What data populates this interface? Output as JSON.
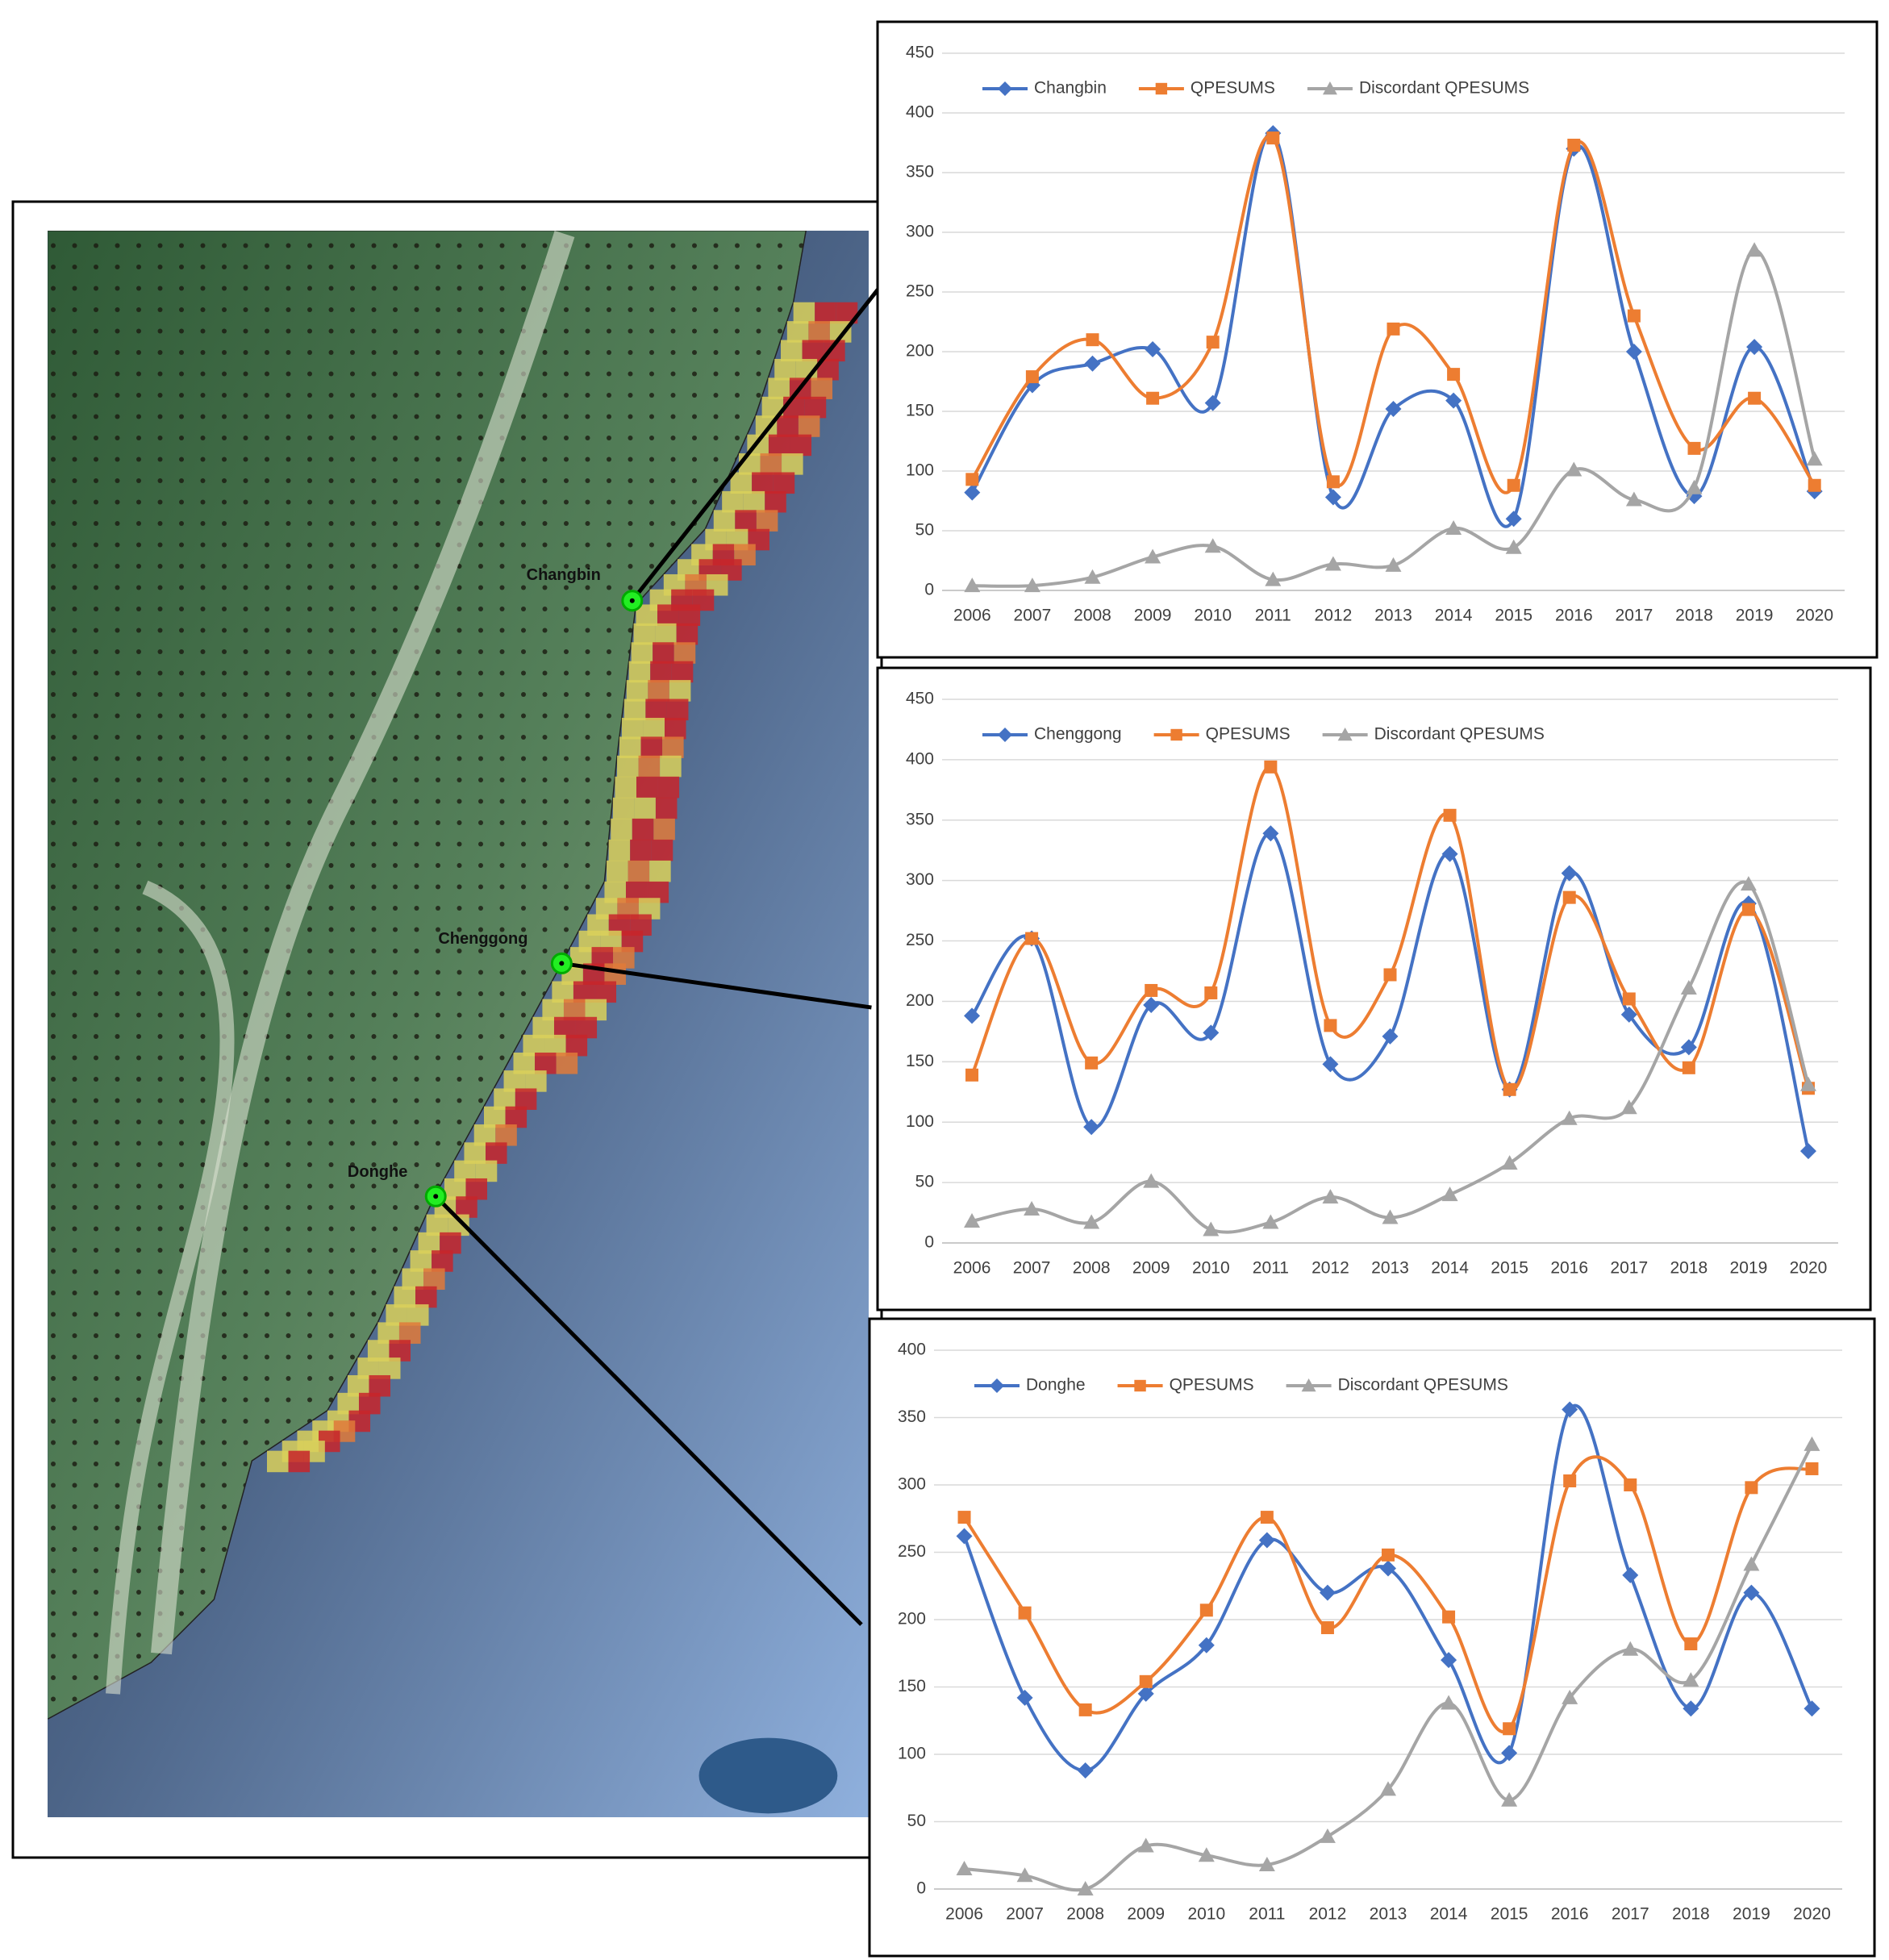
{
  "map": {
    "sites": [
      "Changbin",
      "Chenggong",
      "Donghe"
    ]
  },
  "chart_data": [
    {
      "type": "line",
      "categories": [
        "2006",
        "2007",
        "2008",
        "2009",
        "2010",
        "2011",
        "2012",
        "2013",
        "2014",
        "2015",
        "2016",
        "2017",
        "2018",
        "2019",
        "2020"
      ],
      "ylim": [
        0,
        450
      ],
      "yticks": [
        0,
        50,
        100,
        150,
        200,
        250,
        300,
        350,
        400,
        450
      ],
      "grid": true,
      "legend": "top",
      "series": [
        {
          "name": "Changbin",
          "color": "#4472c4",
          "marker": "diamond",
          "values": [
            82,
            172,
            190,
            202,
            157,
            383,
            78,
            152,
            159,
            60,
            370,
            200,
            79,
            204,
            83
          ]
        },
        {
          "name": "QPESUMS",
          "color": "#ed7d31",
          "marker": "square",
          "values": [
            93,
            179,
            210,
            161,
            208,
            379,
            91,
            219,
            181,
            88,
            373,
            230,
            119,
            161,
            88
          ]
        },
        {
          "name": "Discordant QPESUMS",
          "color": "#a5a5a5",
          "marker": "triangle",
          "values": [
            4,
            4,
            11,
            28,
            37,
            9,
            22,
            21,
            52,
            36,
            101,
            76,
            86,
            285,
            110
          ]
        }
      ]
    },
    {
      "type": "line",
      "categories": [
        "2006",
        "2007",
        "2008",
        "2009",
        "2010",
        "2011",
        "2012",
        "2013",
        "2014",
        "2015",
        "2016",
        "2017",
        "2018",
        "2019",
        "2020"
      ],
      "ylim": [
        0,
        450
      ],
      "yticks": [
        0,
        50,
        100,
        150,
        200,
        250,
        300,
        350,
        400,
        450
      ],
      "grid": true,
      "legend": "top",
      "series": [
        {
          "name": "Chenggong",
          "color": "#4472c4",
          "marker": "diamond",
          "values": [
            188,
            252,
            96,
            197,
            174,
            339,
            148,
            171,
            322,
            127,
            306,
            189,
            162,
            281,
            76
          ]
        },
        {
          "name": "QPESUMS",
          "color": "#ed7d31",
          "marker": "square",
          "values": [
            139,
            252,
            149,
            209,
            207,
            394,
            180,
            222,
            354,
            127,
            286,
            202,
            145,
            276,
            128
          ]
        },
        {
          "name": "Discordant QPESUMS",
          "color": "#a5a5a5",
          "marker": "triangle",
          "values": [
            18,
            28,
            17,
            51,
            11,
            17,
            38,
            21,
            40,
            66,
            103,
            112,
            211,
            297,
            131
          ]
        }
      ]
    },
    {
      "type": "line",
      "categories": [
        "2006",
        "2007",
        "2008",
        "2009",
        "2010",
        "2011",
        "2012",
        "2013",
        "2014",
        "2015",
        "2016",
        "2017",
        "2018",
        "2019",
        "2020"
      ],
      "ylim": [
        0,
        400
      ],
      "yticks": [
        0,
        50,
        100,
        150,
        200,
        250,
        300,
        350,
        400
      ],
      "grid": true,
      "legend": "top",
      "series": [
        {
          "name": "Donghe",
          "color": "#4472c4",
          "marker": "diamond",
          "values": [
            262,
            142,
            88,
            145,
            181,
            259,
            220,
            238,
            170,
            101,
            356,
            233,
            134,
            220,
            134
          ]
        },
        {
          "name": "QPESUMS",
          "color": "#ed7d31",
          "marker": "square",
          "values": [
            276,
            205,
            133,
            154,
            207,
            276,
            194,
            248,
            202,
            119,
            303,
            300,
            182,
            298,
            312
          ]
        },
        {
          "name": "Discordant QPESUMS",
          "color": "#a5a5a5",
          "marker": "triangle",
          "values": [
            15,
            10,
            0,
            32,
            25,
            18,
            39,
            74,
            138,
            66,
            142,
            178,
            155,
            241,
            330
          ]
        }
      ]
    }
  ]
}
